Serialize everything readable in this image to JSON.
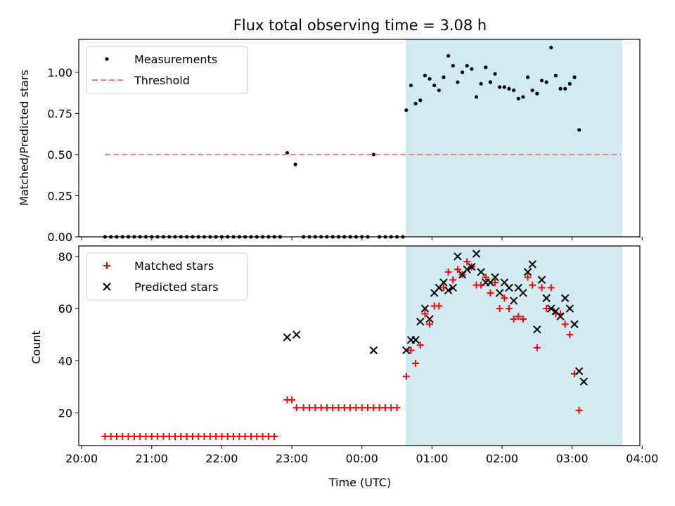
{
  "chart_data": [
    {
      "type": "scatter",
      "title": "Flux total observing time = 3.08 h",
      "ylabel": "Matched/Predicted stars",
      "xlim": [
        "20:00",
        "04:00"
      ],
      "ylim": [
        0,
        1.2
      ],
      "yticks": [
        "0.00",
        "0.25",
        "0.50",
        "0.75",
        "1.00"
      ],
      "shaded_span": [
        "00:38",
        "03:42"
      ],
      "shade_color": "#add8e6",
      "legend_position": "top-left",
      "series": [
        {
          "name": "Measurements",
          "marker": "dot",
          "color": "#000000",
          "points": [
            [
              "20:20",
              0
            ],
            [
              "20:25",
              0
            ],
            [
              "20:30",
              0
            ],
            [
              "20:35",
              0
            ],
            [
              "20:40",
              0
            ],
            [
              "20:45",
              0
            ],
            [
              "20:50",
              0
            ],
            [
              "20:55",
              0
            ],
            [
              "21:00",
              0
            ],
            [
              "21:05",
              0
            ],
            [
              "21:10",
              0
            ],
            [
              "21:15",
              0
            ],
            [
              "21:20",
              0
            ],
            [
              "21:25",
              0
            ],
            [
              "21:30",
              0
            ],
            [
              "21:35",
              0
            ],
            [
              "21:40",
              0
            ],
            [
              "21:45",
              0
            ],
            [
              "21:50",
              0
            ],
            [
              "21:55",
              0
            ],
            [
              "22:00",
              0
            ],
            [
              "22:05",
              0
            ],
            [
              "22:10",
              0
            ],
            [
              "22:15",
              0
            ],
            [
              "22:20",
              0
            ],
            [
              "22:25",
              0
            ],
            [
              "22:30",
              0
            ],
            [
              "22:35",
              0
            ],
            [
              "22:40",
              0
            ],
            [
              "22:45",
              0
            ],
            [
              "22:50",
              0
            ],
            [
              "22:56",
              0.51
            ],
            [
              "23:03",
              0.44
            ],
            [
              "23:10",
              0
            ],
            [
              "23:15",
              0
            ],
            [
              "23:20",
              0
            ],
            [
              "23:25",
              0
            ],
            [
              "23:30",
              0
            ],
            [
              "23:35",
              0
            ],
            [
              "23:40",
              0
            ],
            [
              "23:45",
              0
            ],
            [
              "23:50",
              0
            ],
            [
              "23:55",
              0
            ],
            [
              "00:00",
              0
            ],
            [
              "00:05",
              0
            ],
            [
              "00:10",
              0.5
            ],
            [
              "00:15",
              0
            ],
            [
              "00:20",
              0
            ],
            [
              "00:25",
              0
            ],
            [
              "00:30",
              0
            ],
            [
              "00:35",
              0
            ],
            [
              "00:38",
              0.77
            ],
            [
              "00:42",
              0.92
            ],
            [
              "00:46",
              0.81
            ],
            [
              "00:50",
              0.83
            ],
            [
              "00:54",
              0.98
            ],
            [
              "00:58",
              0.96
            ],
            [
              "01:02",
              0.92
            ],
            [
              "01:06",
              0.89
            ],
            [
              "01:10",
              0.97
            ],
            [
              "01:14",
              1.1
            ],
            [
              "01:18",
              1.04
            ],
            [
              "01:22",
              0.94
            ],
            [
              "01:26",
              1.0
            ],
            [
              "01:30",
              1.04
            ],
            [
              "01:34",
              1.02
            ],
            [
              "01:38",
              0.85
            ],
            [
              "01:42",
              0.93
            ],
            [
              "01:46",
              1.03
            ],
            [
              "01:50",
              0.94
            ],
            [
              "01:54",
              0.99
            ],
            [
              "01:58",
              0.91
            ],
            [
              "02:02",
              0.91
            ],
            [
              "02:06",
              0.9
            ],
            [
              "02:10",
              0.89
            ],
            [
              "02:14",
              0.84
            ],
            [
              "02:18",
              0.85
            ],
            [
              "02:22",
              0.97
            ],
            [
              "02:26",
              0.89
            ],
            [
              "02:30",
              0.87
            ],
            [
              "02:34",
              0.95
            ],
            [
              "02:38",
              0.94
            ],
            [
              "02:42",
              1.15
            ],
            [
              "02:46",
              0.98
            ],
            [
              "02:50",
              0.9
            ],
            [
              "02:54",
              0.9
            ],
            [
              "02:58",
              0.93
            ],
            [
              "03:02",
              0.97
            ],
            [
              "03:06",
              0.65
            ]
          ]
        },
        {
          "name": "Threshold",
          "marker": "dashed-line",
          "color": "#f08080",
          "points": [
            [
              "20:20",
              0.5
            ],
            [
              "03:42",
              0.5
            ]
          ]
        }
      ]
    },
    {
      "type": "scatter",
      "xlabel": "Time (UTC)",
      "ylabel": "Count",
      "xlim": [
        "20:00",
        "04:00"
      ],
      "ylim": [
        7.5,
        84
      ],
      "xticks": [
        "20:00",
        "21:00",
        "22:00",
        "23:00",
        "00:00",
        "01:00",
        "02:00",
        "03:00",
        "04:00"
      ],
      "yticks": [
        "20",
        "40",
        "60",
        "80"
      ],
      "shaded_span": [
        "00:38",
        "03:42"
      ],
      "shade_color": "#add8e6",
      "legend_position": "top-left",
      "series": [
        {
          "name": "Matched stars",
          "marker": "plus",
          "color": "#ff0000",
          "points": [
            [
              "20:20",
              11
            ],
            [
              "20:25",
              11
            ],
            [
              "20:30",
              11
            ],
            [
              "20:35",
              11
            ],
            [
              "20:40",
              11
            ],
            [
              "20:45",
              11
            ],
            [
              "20:50",
              11
            ],
            [
              "20:55",
              11
            ],
            [
              "21:00",
              11
            ],
            [
              "21:05",
              11
            ],
            [
              "21:10",
              11
            ],
            [
              "21:15",
              11
            ],
            [
              "21:20",
              11
            ],
            [
              "21:25",
              11
            ],
            [
              "21:30",
              11
            ],
            [
              "21:35",
              11
            ],
            [
              "21:40",
              11
            ],
            [
              "21:45",
              11
            ],
            [
              "21:50",
              11
            ],
            [
              "21:55",
              11
            ],
            [
              "22:00",
              11
            ],
            [
              "22:05",
              11
            ],
            [
              "22:10",
              11
            ],
            [
              "22:15",
              11
            ],
            [
              "22:20",
              11
            ],
            [
              "22:25",
              11
            ],
            [
              "22:30",
              11
            ],
            [
              "22:35",
              11
            ],
            [
              "22:40",
              11
            ],
            [
              "22:45",
              11
            ],
            [
              "22:56",
              25
            ],
            [
              "23:00",
              25
            ],
            [
              "23:04",
              22
            ],
            [
              "23:10",
              22
            ],
            [
              "23:15",
              22
            ],
            [
              "23:20",
              22
            ],
            [
              "23:25",
              22
            ],
            [
              "23:30",
              22
            ],
            [
              "23:35",
              22
            ],
            [
              "23:40",
              22
            ],
            [
              "23:45",
              22
            ],
            [
              "23:50",
              22
            ],
            [
              "23:55",
              22
            ],
            [
              "00:00",
              22
            ],
            [
              "00:05",
              22
            ],
            [
              "00:10",
              22
            ],
            [
              "00:15",
              22
            ],
            [
              "00:20",
              22
            ],
            [
              "00:25",
              22
            ],
            [
              "00:30",
              22
            ],
            [
              "00:38",
              34
            ],
            [
              "00:42",
              44
            ],
            [
              "00:46",
              39
            ],
            [
              "00:50",
              46
            ],
            [
              "00:54",
              58
            ],
            [
              "00:58",
              54
            ],
            [
              "01:02",
              61
            ],
            [
              "01:06",
              61
            ],
            [
              "01:10",
              68
            ],
            [
              "01:14",
              74
            ],
            [
              "01:18",
              71
            ],
            [
              "01:22",
              75
            ],
            [
              "01:26",
              73
            ],
            [
              "01:30",
              78
            ],
            [
              "01:34",
              76
            ],
            [
              "01:38",
              69
            ],
            [
              "01:42",
              69
            ],
            [
              "01:46",
              72
            ],
            [
              "01:50",
              66
            ],
            [
              "01:54",
              70
            ],
            [
              "01:58",
              60
            ],
            [
              "02:02",
              64
            ],
            [
              "02:06",
              60
            ],
            [
              "02:10",
              56
            ],
            [
              "02:14",
              57
            ],
            [
              "02:18",
              56
            ],
            [
              "02:22",
              72
            ],
            [
              "02:26",
              69
            ],
            [
              "02:30",
              45
            ],
            [
              "02:34",
              68
            ],
            [
              "02:38",
              60
            ],
            [
              "02:42",
              68
            ],
            [
              "02:46",
              58
            ],
            [
              "02:50",
              58
            ],
            [
              "02:54",
              54
            ],
            [
              "02:58",
              50
            ],
            [
              "03:02",
              35
            ],
            [
              "03:06",
              21
            ]
          ]
        },
        {
          "name": "Predicted stars",
          "marker": "x",
          "color": "#000000",
          "points": [
            [
              "22:56",
              49
            ],
            [
              "23:04",
              50
            ],
            [
              "00:10",
              44
            ],
            [
              "00:38",
              44
            ],
            [
              "00:42",
              48
            ],
            [
              "00:46",
              48
            ],
            [
              "00:50",
              55
            ],
            [
              "00:54",
              60
            ],
            [
              "00:58",
              56
            ],
            [
              "01:02",
              66
            ],
            [
              "01:06",
              68
            ],
            [
              "01:10",
              70
            ],
            [
              "01:14",
              67
            ],
            [
              "01:18",
              68
            ],
            [
              "01:22",
              80
            ],
            [
              "01:26",
              73
            ],
            [
              "01:30",
              75
            ],
            [
              "01:34",
              76
            ],
            [
              "01:38",
              81
            ],
            [
              "01:42",
              74
            ],
            [
              "01:46",
              70
            ],
            [
              "01:50",
              70
            ],
            [
              "01:54",
              72
            ],
            [
              "01:58",
              66
            ],
            [
              "02:02",
              70
            ],
            [
              "02:06",
              68
            ],
            [
              "02:10",
              63
            ],
            [
              "02:14",
              68
            ],
            [
              "02:18",
              66
            ],
            [
              "02:22",
              74
            ],
            [
              "02:26",
              77
            ],
            [
              "02:30",
              52
            ],
            [
              "02:34",
              71
            ],
            [
              "02:38",
              64
            ],
            [
              "02:42",
              60
            ],
            [
              "02:46",
              59
            ],
            [
              "02:50",
              57
            ],
            [
              "02:54",
              64
            ],
            [
              "02:58",
              60
            ],
            [
              "03:02",
              54
            ],
            [
              "03:06",
              36
            ],
            [
              "03:10",
              32
            ]
          ]
        }
      ]
    }
  ]
}
